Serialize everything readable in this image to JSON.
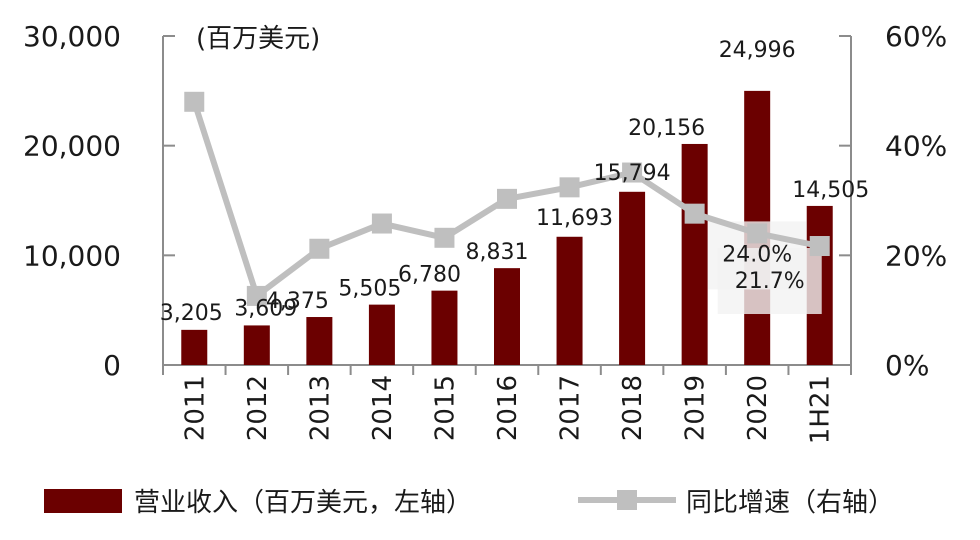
{
  "chart_data": {
    "type": "bar",
    "unit_label": "(百万美元)",
    "categories": [
      "2011",
      "2012",
      "2013",
      "2014",
      "2015",
      "2016",
      "2017",
      "2018",
      "2019",
      "2020",
      "1H21"
    ],
    "series": [
      {
        "name": "营业收入（百万美元，左轴）",
        "type": "bar",
        "axis": "left",
        "color": "#6b0000",
        "values": [
          3205,
          3609,
          4375,
          5505,
          6780,
          8831,
          11693,
          15794,
          20156,
          24996,
          14505
        ],
        "labels": [
          "3,205",
          "3,609",
          "4,375",
          "5,505",
          "6,780",
          "8,831",
          "11,693",
          "15,794",
          "20,156",
          "24,996",
          "14,505"
        ]
      },
      {
        "name": "同比增速（右轴）",
        "type": "line",
        "axis": "right",
        "color": "#bfbfbf",
        "values": [
          48.0,
          12.6,
          21.2,
          25.8,
          23.2,
          30.3,
          32.4,
          35.1,
          27.6,
          24.0,
          21.7
        ],
        "value_unit": "%",
        "labeled_points": [
          {
            "index": 9,
            "label": "24.0%"
          },
          {
            "index": 10,
            "label": "21.7%"
          }
        ]
      }
    ],
    "y_left": {
      "min": 0,
      "max": 30000,
      "ticks": [
        0,
        10000,
        20000,
        30000
      ],
      "tick_labels": [
        "0",
        "10,000",
        "20,000",
        "30,000"
      ]
    },
    "y_right": {
      "min": 0,
      "max": 60,
      "ticks": [
        0,
        20,
        40,
        60
      ],
      "tick_labels": [
        "0%",
        "20%",
        "40%",
        "60%"
      ]
    },
    "grid": false,
    "legend_position": "bottom"
  }
}
